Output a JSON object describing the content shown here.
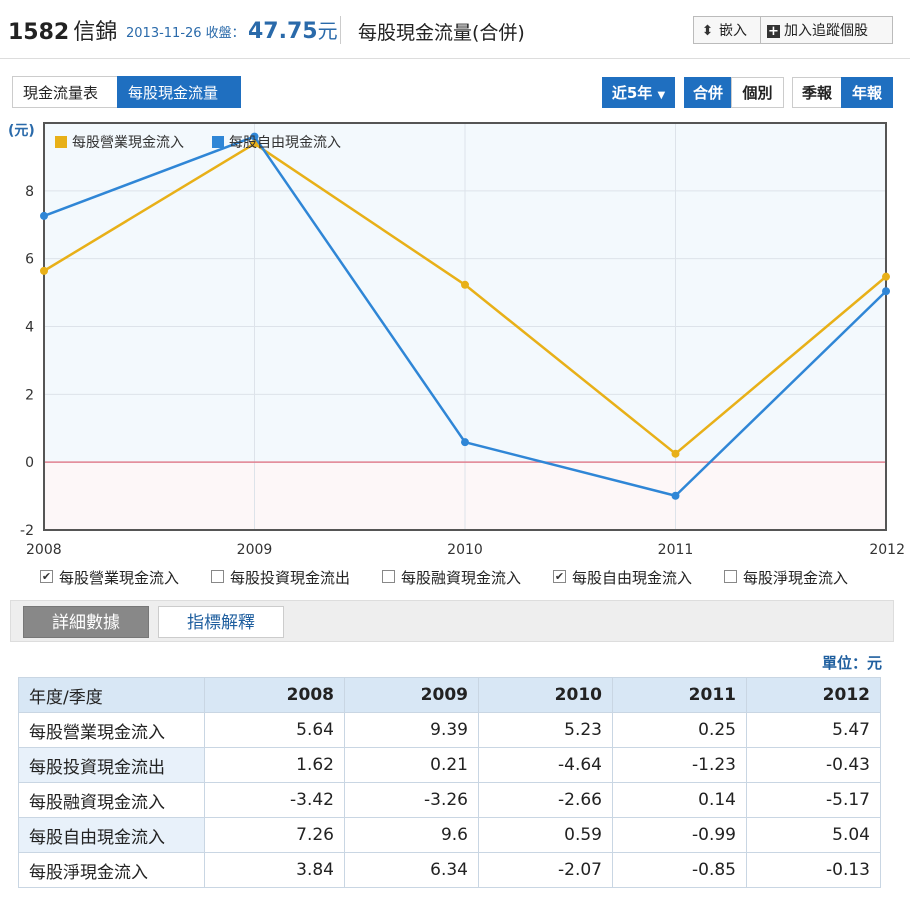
{
  "header": {
    "code": "1582",
    "name": "信錦",
    "date_label": "2013-11-26 收盤：",
    "price": "47.75",
    "price_unit": "元",
    "page_title": "每股現金流量(合併)",
    "embed_label": "嵌入",
    "track_label": "加入追蹤個股"
  },
  "tabs": [
    {
      "label": "現金流量表",
      "active": false
    },
    {
      "label": "每股現金流量",
      "active": true
    }
  ],
  "range_select": "近5年",
  "scope_toggle": [
    {
      "label": "合併",
      "on": true
    },
    {
      "label": "個別",
      "on": false
    }
  ],
  "period_toggle": [
    {
      "label": "季報",
      "on": false
    },
    {
      "label": "年報",
      "on": true
    }
  ],
  "chart_data": {
    "type": "line",
    "ylabel": "(元)",
    "x": [
      "2008",
      "2009",
      "2010",
      "2011",
      "2012"
    ],
    "ylim": [
      -2,
      10
    ],
    "yticks": [
      -2,
      0,
      2,
      4,
      6,
      8
    ],
    "grid": true,
    "legend_position": "top-left",
    "series": [
      {
        "name": "每股營業現金流入",
        "color": "#e8b018",
        "values": [
          5.64,
          9.39,
          5.23,
          0.25,
          5.47
        ]
      },
      {
        "name": "每股自由現金流入",
        "color": "#2f86d6",
        "values": [
          7.26,
          9.6,
          0.59,
          -0.99,
          5.04
        ]
      }
    ]
  },
  "series_toggles": [
    {
      "label": "每股營業現金流入",
      "checked": true
    },
    {
      "label": "每股投資現金流出",
      "checked": false
    },
    {
      "label": "每股融資現金流入",
      "checked": false
    },
    {
      "label": "每股自由現金流入",
      "checked": true
    },
    {
      "label": "每股淨現金流入",
      "checked": false
    }
  ],
  "detail_tabs": {
    "active": "詳細數據",
    "inactive": "指標解釋"
  },
  "unit_label": "單位：元",
  "table": {
    "header": [
      "年度/季度",
      "2008",
      "2009",
      "2010",
      "2011",
      "2012"
    ],
    "rows": [
      {
        "label": "每股營業現金流入",
        "values": [
          "5.64",
          "9.39",
          "5.23",
          "0.25",
          "5.47"
        ]
      },
      {
        "label": "每股投資現金流出",
        "values": [
          "1.62",
          "0.21",
          "-4.64",
          "-1.23",
          "-0.43"
        ]
      },
      {
        "label": "每股融資現金流入",
        "values": [
          "-3.42",
          "-3.26",
          "-2.66",
          "0.14",
          "-5.17"
        ]
      },
      {
        "label": "每股自由現金流入",
        "values": [
          "7.26",
          "9.6",
          "0.59",
          "-0.99",
          "5.04"
        ]
      },
      {
        "label": "每股淨現金流入",
        "values": [
          "3.84",
          "6.34",
          "-2.07",
          "-0.85",
          "-0.13"
        ]
      }
    ]
  },
  "colors": {
    "accent": "#1f6fc0",
    "zero_line": "#e08090"
  }
}
